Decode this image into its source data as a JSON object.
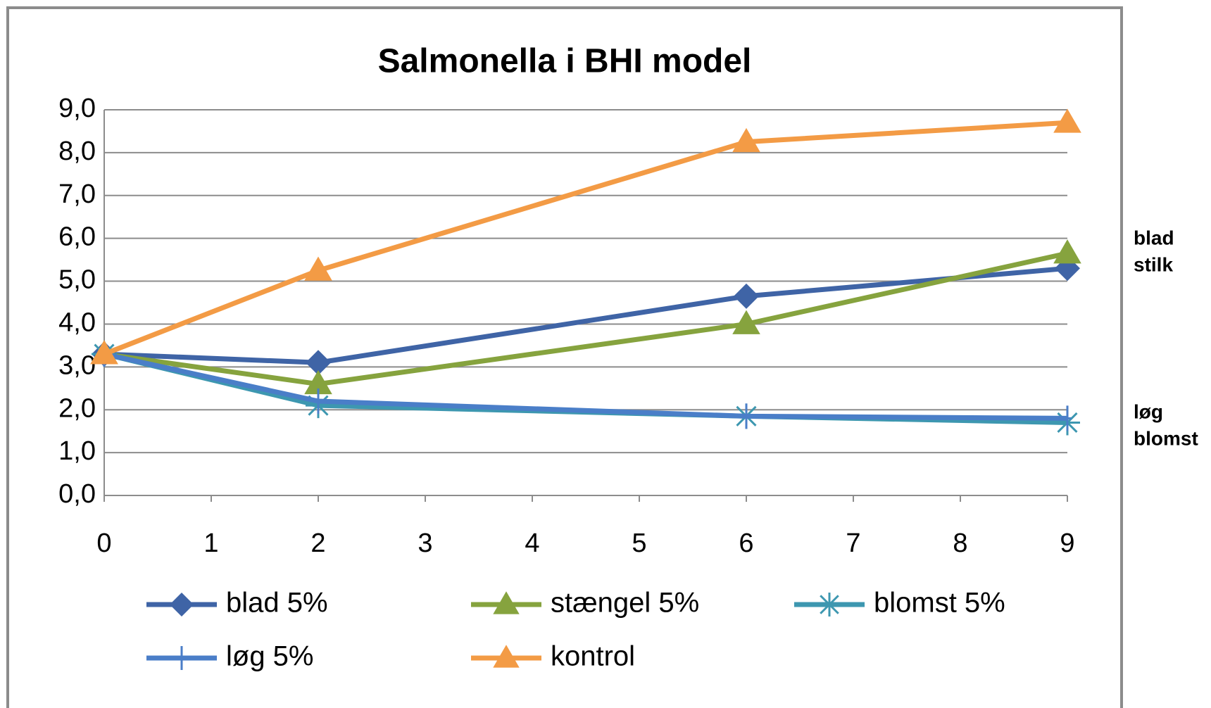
{
  "chart_data": {
    "type": "line",
    "title": "Salmonella i BHI model",
    "x": [
      0,
      2,
      6,
      9
    ],
    "xlim": [
      0,
      9
    ],
    "xticks": [
      0,
      1,
      2,
      3,
      4,
      5,
      6,
      7,
      8,
      9
    ],
    "ylim": [
      0,
      9
    ],
    "yticks": [
      {
        "value": 0,
        "label": "0,0"
      },
      {
        "value": 1,
        "label": "1,0"
      },
      {
        "value": 2,
        "label": "2,0"
      },
      {
        "value": 3,
        "label": "3,0"
      },
      {
        "value": 4,
        "label": "4,0"
      },
      {
        "value": 5,
        "label": "5,0"
      },
      {
        "value": 6,
        "label": "6,0"
      },
      {
        "value": 7,
        "label": "7,0"
      },
      {
        "value": 8,
        "label": "8,0"
      },
      {
        "value": 9,
        "label": "9,0"
      }
    ],
    "grid": true,
    "series": [
      {
        "name": "blad 5%",
        "color": "#3f64a6",
        "marker": "diamond",
        "values": [
          3.3,
          3.1,
          4.65,
          5.3
        ]
      },
      {
        "name": "stængel 5%",
        "color": "#86a33e",
        "marker": "triangle",
        "values": [
          3.3,
          2.6,
          4.0,
          5.65
        ]
      },
      {
        "name": "blomst 5%",
        "color": "#3d97b0",
        "marker": "asterisk",
        "values": [
          3.3,
          2.1,
          1.85,
          1.7
        ]
      },
      {
        "name": "løg 5%",
        "color": "#4a7ec8",
        "marker": "plus",
        "values": [
          3.3,
          2.2,
          1.85,
          1.8
        ]
      },
      {
        "name": "kontrol",
        "color": "#f39b45",
        "marker": "triangle",
        "values": [
          3.3,
          5.25,
          8.25,
          8.7
        ]
      }
    ],
    "annotations": [
      "blad",
      "stilk",
      "løg",
      "blomst"
    ]
  }
}
